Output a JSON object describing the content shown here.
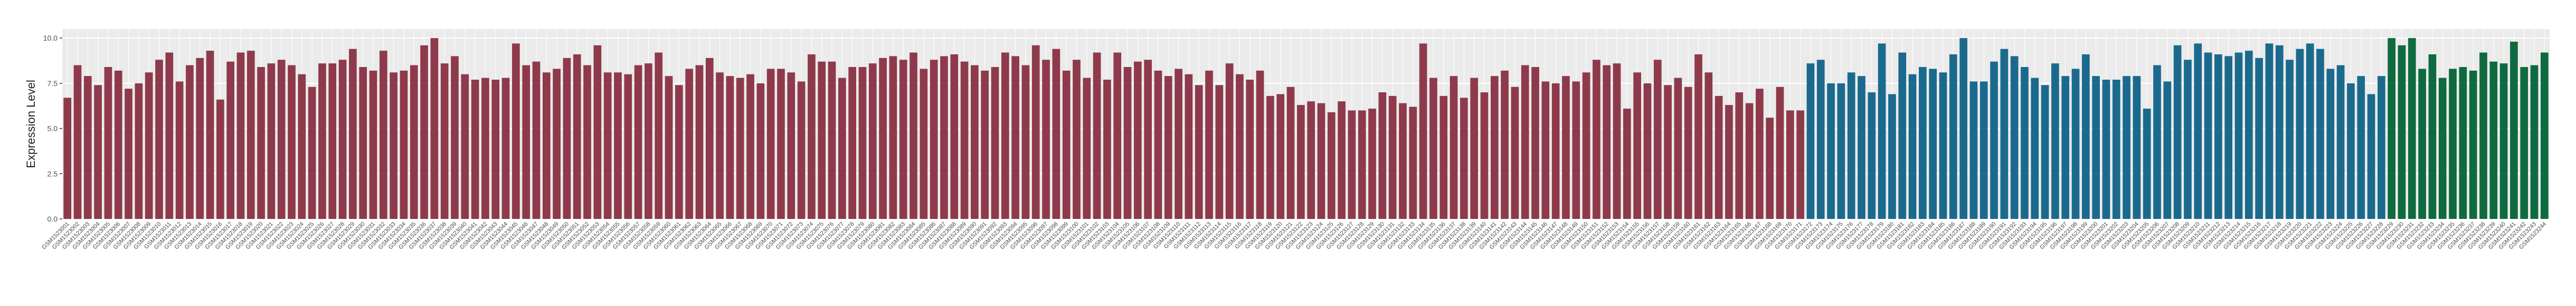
{
  "chart_data": {
    "type": "bar",
    "ylabel": "Expression Level",
    "ylim": [
      0,
      10.5
    ],
    "yticks": [
      {
        "value": 0,
        "label": "0.0"
      },
      2.5,
      {
        "value": 5,
        "label": "5.0"
      },
      7.5,
      {
        "value": 10,
        "label": "10.0"
      }
    ],
    "grid": true,
    "series": [
      {
        "color": "#8e3a4b",
        "categories": [
          "GSM1523001",
          "GSM1523002",
          "GSM1523003",
          "GSM1523004",
          "GSM1523005",
          "GSM1523006",
          "GSM1523007",
          "GSM1523008",
          "GSM1523009",
          "GSM1523010",
          "GSM1523011",
          "GSM1523012",
          "GSM1523013",
          "GSM1523014",
          "GSM1523015",
          "GSM1523016",
          "GSM1523017",
          "GSM1523018",
          "GSM1523019",
          "GSM1523020",
          "GSM1523021",
          "GSM1523022",
          "GSM1523023",
          "GSM1523024",
          "GSM1523025",
          "GSM1523026",
          "GSM1523027",
          "GSM1523028",
          "GSM1523029",
          "GSM1523030",
          "GSM1523031",
          "GSM1523032",
          "GSM1523033",
          "GSM1523034",
          "GSM1523035",
          "GSM1523036",
          "GSM1523037",
          "GSM1523038",
          "GSM1523039",
          "GSM1523040",
          "GSM1523041",
          "GSM1523042",
          "GSM1523043",
          "GSM1523044",
          "GSM1523045",
          "GSM1523046",
          "GSM1523047",
          "GSM1523048",
          "GSM1523049",
          "GSM1523050",
          "GSM1523051",
          "GSM1523052",
          "GSM1523053",
          "GSM1523054",
          "GSM1523055",
          "GSM1523056",
          "GSM1523057",
          "GSM1523058",
          "GSM1523059",
          "GSM1523060",
          "GSM1523061",
          "GSM1523062",
          "GSM1523063",
          "GSM1523064",
          "GSM1523065",
          "GSM1523066",
          "GSM1523067",
          "GSM1523068",
          "GSM1523069",
          "GSM1523070",
          "GSM1523071",
          "GSM1523072",
          "GSM1523073",
          "GSM1523074",
          "GSM1523075",
          "GSM1523076",
          "GSM1523077",
          "GSM1523078",
          "GSM1523079",
          "GSM1523080",
          "GSM1523081",
          "GSM1523082",
          "GSM1523083",
          "GSM1523084",
          "GSM1523085",
          "GSM1523086",
          "GSM1523087",
          "GSM1523088",
          "GSM1523089",
          "GSM1523090",
          "GSM1523091",
          "GSM1523092",
          "GSM1523093",
          "GSM1523094",
          "GSM1523095",
          "GSM1523096",
          "GSM1523097",
          "GSM1523098",
          "GSM1523099",
          "GSM1523100",
          "GSM1523101",
          "GSM1523102",
          "GSM1523103",
          "GSM1523104",
          "GSM1523105",
          "GSM1523106",
          "GSM1523107",
          "GSM1523108",
          "GSM1523109",
          "GSM1523110",
          "GSM1523111",
          "GSM1523112",
          "GSM1523113",
          "GSM1523114",
          "GSM1523115",
          "GSM1523116",
          "GSM1523117",
          "GSM1523118",
          "GSM1523119",
          "GSM1523120",
          "GSM1523121",
          "GSM1523122",
          "GSM1523123",
          "GSM1523124",
          "GSM1523125",
          "GSM1523126",
          "GSM1523127",
          "GSM1523128",
          "GSM1523129",
          "GSM1523130",
          "GSM1523131",
          "GSM1523132",
          "GSM1523133",
          "GSM1523134",
          "GSM1523135",
          "GSM1523136",
          "GSM1523137",
          "GSM1523138",
          "GSM1523139",
          "GSM1523140",
          "GSM1523141",
          "GSM1523142",
          "GSM1523143",
          "GSM1523144",
          "GSM1523145",
          "GSM1523146",
          "GSM1523147",
          "GSM1523148",
          "GSM1523149",
          "GSM1523150",
          "GSM1523151",
          "GSM1523152",
          "GSM1523153",
          "GSM1523154",
          "GSM1523155",
          "GSM1523156",
          "GSM1523157",
          "GSM1523158",
          "GSM1523159",
          "GSM1523160",
          "GSM1523161",
          "GSM1523162",
          "GSM1523163",
          "GSM1523164",
          "GSM1523165",
          "GSM1523166",
          "GSM1523167",
          "GSM1523168",
          "GSM1523169",
          "GSM1523170",
          "GSM1523171"
        ],
        "values": [
          6.7,
          8.5,
          7.9,
          7.4,
          8.4,
          8.2,
          7.2,
          7.5,
          8.1,
          8.8,
          9.2,
          7.6,
          8.5,
          8.9,
          9.3,
          6.6,
          8.7,
          9.2,
          9.3,
          8.4,
          8.6,
          8.8,
          8.5,
          8.0,
          7.3,
          8.6,
          8.6,
          8.8,
          9.4,
          8.4,
          8.2,
          9.3,
          8.1,
          8.2,
          8.5,
          9.6,
          10.0,
          8.6,
          9.0,
          8.0,
          7.7,
          7.8,
          7.7,
          7.8,
          9.7,
          8.5,
          8.7,
          8.1,
          8.3,
          8.9,
          9.1,
          8.5,
          9.6,
          8.1,
          8.1,
          8.0,
          8.5,
          8.6,
          9.2,
          7.9,
          7.4,
          8.3,
          8.5,
          8.9,
          8.1,
          7.9,
          7.8,
          8.0,
          7.5,
          8.3,
          8.3,
          8.1,
          7.6,
          9.1,
          8.7,
          8.7,
          7.8,
          8.4,
          8.4,
          8.6,
          8.9,
          9.0,
          8.8,
          9.2,
          8.3,
          8.8,
          9.0,
          9.1,
          8.7,
          8.5,
          8.2,
          8.4,
          9.2,
          9.0,
          8.5,
          9.6,
          8.8,
          9.4,
          8.2,
          8.8,
          7.8,
          9.2,
          7.7,
          9.2,
          8.4,
          8.7,
          8.8,
          8.2,
          7.9,
          8.3,
          8.0,
          7.4,
          8.2,
          7.4,
          8.6,
          8.0,
          7.7,
          8.2,
          6.8,
          6.9,
          7.3,
          6.3,
          6.5,
          6.4,
          5.9,
          6.5,
          6.0,
          6.0,
          6.1,
          7.0,
          6.8,
          6.4,
          6.2,
          9.7,
          7.8,
          6.8,
          7.9,
          6.7,
          7.8,
          7.0,
          7.9,
          8.2,
          7.3,
          8.5,
          8.4,
          7.6,
          7.5,
          7.9,
          7.6,
          8.1,
          8.8,
          8.5,
          8.6,
          6.1,
          8.1,
          7.5,
          8.8,
          7.4,
          7.8,
          7.3,
          9.1,
          8.1,
          6.8,
          6.3,
          7.0,
          6.4,
          7.2,
          5.6,
          7.3,
          6.0,
          6.0
        ]
      },
      {
        "color": "#1b6a8e",
        "categories": [
          "GSM1523172",
          "GSM1523173",
          "GSM1523174",
          "GSM1523175",
          "GSM1523176",
          "GSM1523177",
          "GSM1523178",
          "GSM1523179",
          "GSM1523180",
          "GSM1523181",
          "GSM1523182",
          "GSM1523183",
          "GSM1523184",
          "GSM1523185",
          "GSM1523186",
          "GSM1523187",
          "GSM1523188",
          "GSM1523189",
          "GSM1523190",
          "GSM1523191",
          "GSM1523192",
          "GSM1523193",
          "GSM1523194",
          "GSM1523195",
          "GSM1523196",
          "GSM1523197",
          "GSM1523198",
          "GSM1523199",
          "GSM1523200",
          "GSM1523201",
          "GSM1523202",
          "GSM1523203",
          "GSM1523204",
          "GSM1523205",
          "GSM1523206",
          "GSM1523207",
          "GSM1523208",
          "GSM1523209",
          "GSM1523210",
          "GSM1523211",
          "GSM1523212",
          "GSM1523213",
          "GSM1523214",
          "GSM1523215",
          "GSM1523216",
          "GSM1523217",
          "GSM1523218",
          "GSM1523219",
          "GSM1523220",
          "GSM1523221",
          "GSM1523222",
          "GSM1523223",
          "GSM1523224",
          "GSM1523225",
          "GSM1523226",
          "GSM1523227",
          "GSM1523228"
        ],
        "values": [
          8.6,
          8.8,
          7.5,
          7.5,
          8.1,
          7.9,
          7.0,
          9.7,
          6.9,
          9.2,
          8.0,
          8.4,
          8.3,
          8.1,
          9.1,
          10.0,
          7.6,
          7.6,
          8.7,
          9.4,
          9.0,
          8.4,
          7.8,
          7.4,
          8.6,
          7.9,
          8.3,
          9.1,
          7.9,
          7.7,
          7.7,
          7.9,
          7.9,
          6.1,
          8.5,
          7.6,
          9.6,
          8.8,
          9.7,
          9.2,
          9.1,
          9.0,
          9.2,
          9.3,
          8.9,
          9.7,
          9.6,
          8.8,
          9.4,
          9.7,
          9.4,
          8.3,
          8.5,
          7.5,
          7.9,
          6.9,
          7.9
        ]
      },
      {
        "color": "#0f6b3f",
        "categories": [
          "GSM1523229",
          "GSM1523230",
          "GSM1523231",
          "GSM1523232",
          "GSM1523233",
          "GSM1523234",
          "GSM1523235",
          "GSM1523236",
          "GSM1523237",
          "GSM1523238",
          "GSM1523239",
          "GSM1523240",
          "GSM1523241",
          "GSM1523242",
          "GSM1523243",
          "GSM1523244"
        ],
        "values": [
          10.0,
          9.6,
          10.0,
          8.3,
          9.1,
          7.8,
          8.3,
          8.4,
          8.2,
          9.2,
          8.7,
          8.6,
          9.8,
          8.4,
          8.5,
          9.2
        ]
      }
    ]
  }
}
